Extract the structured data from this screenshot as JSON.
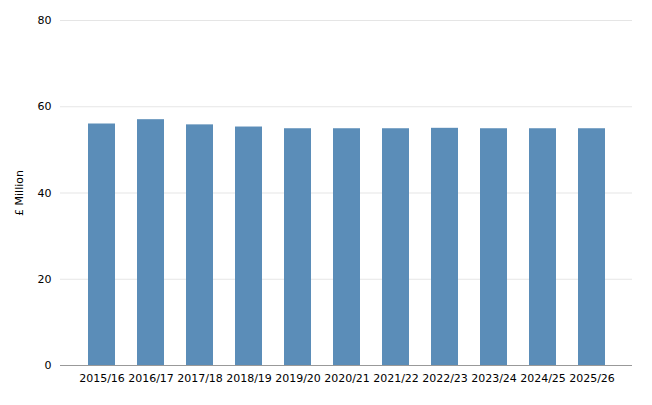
{
  "chart_data": {
    "type": "bar",
    "categories": [
      "2015/16",
      "2016/17",
      "2017/18",
      "2018/19",
      "2019/20",
      "2020/21",
      "2021/22",
      "2022/23",
      "2023/24",
      "2024/25",
      "2025/26"
    ],
    "values": [
      56.0,
      57.0,
      55.8,
      55.3,
      54.9,
      54.9,
      54.9,
      55.0,
      54.9,
      54.9,
      54.9
    ],
    "color": "#5b8db8",
    "ylabel": "£ Million",
    "ylim": [
      0,
      80
    ],
    "yticks": [
      0,
      20,
      40,
      60,
      80
    ],
    "grid": true
  }
}
